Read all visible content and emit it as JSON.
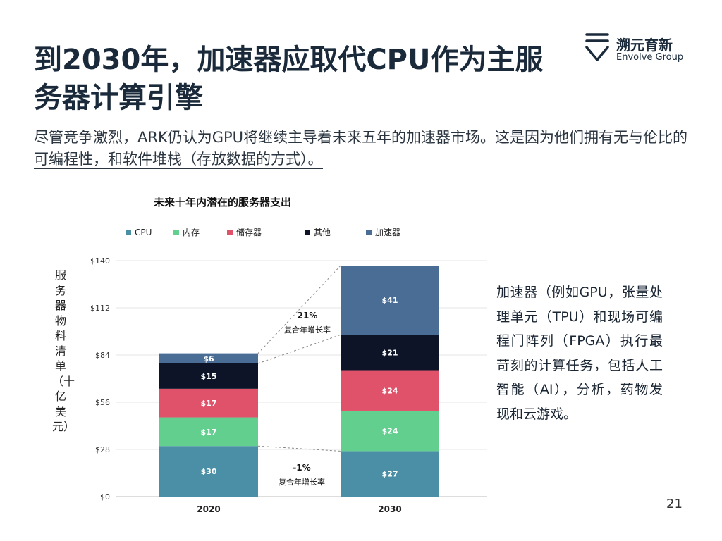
{
  "page": {
    "title_line1": "到2030年，加速器应取代CPU作为主服",
    "title_line2": "务器计算引擎",
    "subtitle": "尽管竞争激烈，ARK仍认为GPU将继续主导着未来五年的加速器市场。这是因为他们拥有无与伦比的可编程性，和软件堆栈（存放数据的方式）。",
    "description": "加速器（例如GPU，张量处理单元（TPU）和现场可编程门阵列（FPGA）执行最苛刻的计算任务，包括人工智能（AI），分析，药物发现和云游戏。",
    "page_number": "21"
  },
  "logo": {
    "name_cn": "溯元育新",
    "name_en": "Envolve Group"
  },
  "colors": {
    "CPU": "#4a8fa6",
    "内存": "#63cf8f",
    "储存器": "#e0516a",
    "其他": "#0d1428",
    "加速器": "#4a6d96"
  },
  "chart_data": {
    "type": "bar",
    "stacked": true,
    "title": "未来十年内潜在的服务器支出",
    "ylabel": "服务器物料清单（十亿美元）",
    "xlabel": "",
    "categories": [
      "2020",
      "2030"
    ],
    "series": [
      {
        "name": "CPU",
        "values": [
          30,
          27
        ],
        "labels": [
          "$30",
          "$27"
        ]
      },
      {
        "name": "内存",
        "values": [
          17,
          24
        ],
        "labels": [
          "$17",
          "$24"
        ]
      },
      {
        "name": "储存器",
        "values": [
          17,
          24
        ],
        "labels": [
          "$17",
          "$24"
        ]
      },
      {
        "name": "其他",
        "values": [
          15,
          21
        ],
        "labels": [
          "$15",
          "$21"
        ]
      },
      {
        "name": "加速器",
        "values": [
          6,
          41
        ],
        "labels": [
          "$6",
          "$41"
        ]
      }
    ],
    "ylim": [
      0,
      140
    ],
    "yticks": [
      0,
      28,
      56,
      84,
      112,
      140
    ],
    "ytick_labels": [
      "$0",
      "$28",
      "$56",
      "$84",
      "$112",
      "$140"
    ],
    "legend_position": "top",
    "annotations": [
      {
        "rate": "21%",
        "text": "复合年增长率",
        "series": "加速器"
      },
      {
        "rate": "-1%",
        "text": "复合年增长率",
        "series": "CPU"
      }
    ]
  }
}
